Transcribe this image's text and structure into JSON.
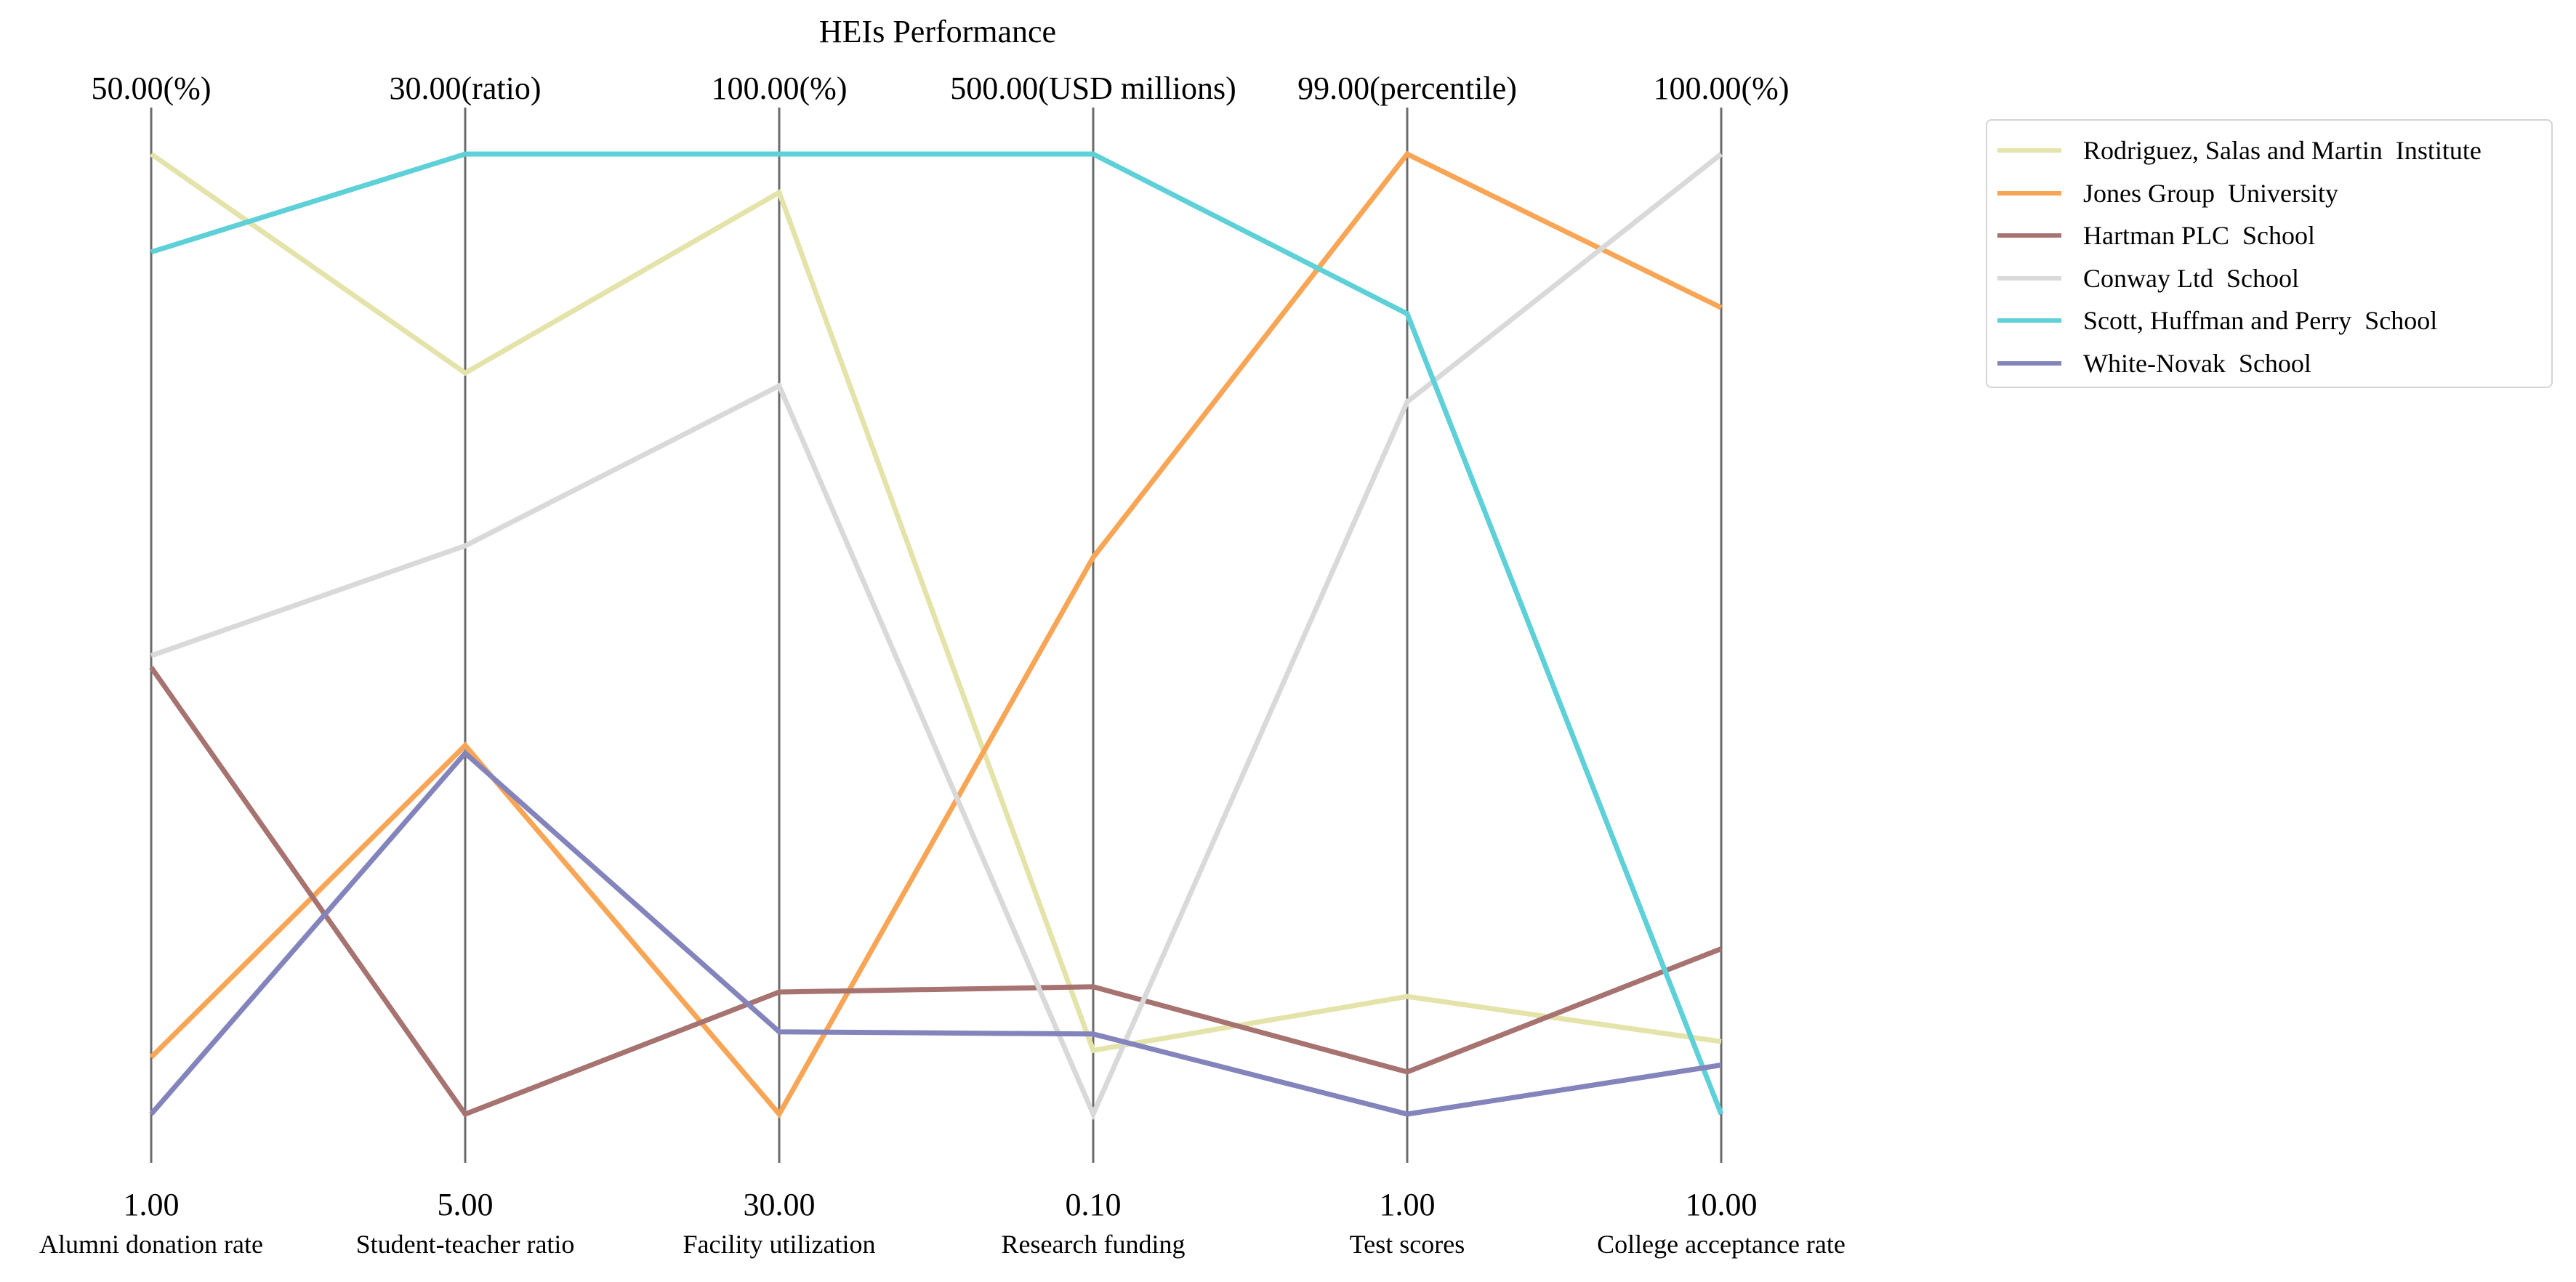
{
  "chart_data": {
    "type": "parallel-coordinates",
    "title": "HEIs Performance",
    "axes": [
      {
        "name": "Alumni donation rate",
        "min": 1,
        "max": 50,
        "min_label": "1.00",
        "max_label": "50.00(%)"
      },
      {
        "name": "Student-teacher ratio",
        "min": 5,
        "max": 30,
        "min_label": "5.00",
        "max_label": "30.00(ratio)"
      },
      {
        "name": "Facility utilization",
        "min": 30,
        "max": 100,
        "min_label": "30.00",
        "max_label": "100.00(%)"
      },
      {
        "name": "Research funding",
        "min": 0.1,
        "max": 500,
        "min_label": "0.10",
        "max_label": "500.00(USD millions)"
      },
      {
        "name": "Test scores",
        "min": 1,
        "max": 99,
        "min_label": "1.00",
        "max_label": "99.00(percentile)"
      },
      {
        "name": "College acceptance rate",
        "min": 10,
        "max": 100,
        "min_label": "10.00",
        "max_label": "100.00(%)"
      }
    ],
    "series": [
      {
        "name": "Rodriguez, Salas and Martin  Institute",
        "color": "#e4e3a9",
        "values": [
          50,
          24.3,
          97.2,
          33.3,
          13.0,
          16.8
        ]
      },
      {
        "name": "Jones Group  University",
        "color": "#f8a556",
        "values": [
          3.9,
          14.6,
          30,
          290,
          99,
          85.6
        ]
      },
      {
        "name": "Hartman PLC  School",
        "color": "#a67370",
        "values": [
          23.8,
          5,
          38.9,
          66.4,
          5.3,
          25.5
        ]
      },
      {
        "name": "Conway Ltd  School",
        "color": "#d9d9d9",
        "values": [
          24.4,
          19.8,
          83.1,
          0.1,
          73.7,
          100
        ]
      },
      {
        "name": "Scott, Huffman and Perry  School",
        "color": "#5ed0d8",
        "values": [
          45.0,
          30,
          100,
          500,
          82.7,
          10
        ]
      },
      {
        "name": "White-Novak  School",
        "color": "#8484bd",
        "values": [
          1,
          14.4,
          36.0,
          41.8,
          1,
          14.6
        ]
      }
    ],
    "grid": false,
    "legend_position": "right"
  }
}
